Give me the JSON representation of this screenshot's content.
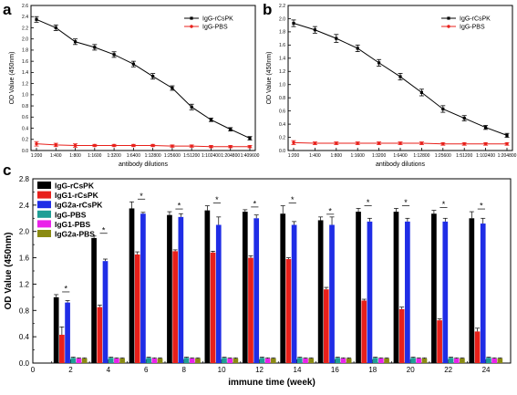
{
  "chart_data": [
    {
      "panel": "a",
      "type": "line",
      "categories": [
        "1:200",
        "1:400",
        "1:800",
        "1:1600",
        "1:3200",
        "1:6400",
        "1:12800",
        "1:25600",
        "1:51200",
        "1:102400",
        "1:204800",
        "1:409600"
      ],
      "series": [
        {
          "name": "IgG-rCsPK",
          "color": "#000000",
          "marker": "square",
          "values": [
            2.35,
            2.2,
            1.95,
            1.85,
            1.72,
            1.55,
            1.33,
            1.12,
            0.78,
            0.55,
            0.38,
            0.22
          ],
          "errors": [
            0.05,
            0.05,
            0.05,
            0.05,
            0.05,
            0.05,
            0.05,
            0.04,
            0.05,
            0.03,
            0.03,
            0.03
          ]
        },
        {
          "name": "IgG-PBS",
          "color": "#e8201b",
          "marker": "circle",
          "values": [
            0.12,
            0.1,
            0.09,
            0.09,
            0.09,
            0.09,
            0.09,
            0.08,
            0.08,
            0.07,
            0.07,
            0.07
          ],
          "errors": [
            0.04,
            0.03,
            0.03,
            0.02,
            0.02,
            0.02,
            0.02,
            0.02,
            0.02,
            0.02,
            0.02,
            0.02
          ]
        }
      ],
      "title": "",
      "xlabel": "antibody dilutions",
      "ylabel": "OD Value (450nm)",
      "ylim": [
        0,
        2.6
      ],
      "yticks": [
        "0.0",
        "0.2",
        "0.4",
        "0.6",
        "0.8",
        "1.0",
        "1.2",
        "1.4",
        "1.6",
        "1.8",
        "2.0",
        "2.2",
        "2.4",
        "2.6"
      ],
      "legend": "top-right"
    },
    {
      "panel": "b",
      "type": "line",
      "categories": [
        "1:200",
        "1:400",
        "1:800",
        "1:1600",
        "1:3200",
        "1:6400",
        "1:12800",
        "1:25600",
        "1:51200",
        "1:102400",
        "1:204800"
      ],
      "series": [
        {
          "name": "IgG-rCsPK",
          "color": "#000000",
          "marker": "square",
          "values": [
            1.93,
            1.83,
            1.7,
            1.55,
            1.33,
            1.12,
            0.88,
            0.63,
            0.49,
            0.35,
            0.23
          ],
          "errors": [
            0.05,
            0.05,
            0.06,
            0.05,
            0.05,
            0.05,
            0.05,
            0.05,
            0.04,
            0.03,
            0.03
          ]
        },
        {
          "name": "IgG-PBS",
          "color": "#e8201b",
          "marker": "circle",
          "values": [
            0.12,
            0.11,
            0.11,
            0.11,
            0.11,
            0.11,
            0.11,
            0.1,
            0.1,
            0.1,
            0.1
          ],
          "errors": [
            0.03,
            0.02,
            0.02,
            0.02,
            0.02,
            0.02,
            0.02,
            0.02,
            0.02,
            0.02,
            0.02
          ]
        }
      ],
      "title": "",
      "xlabel": "antibody dilutions",
      "ylabel": "OD Value (450nm)",
      "ylim": [
        0,
        2.2
      ],
      "yticks": [
        "0.0",
        "0.2",
        "0.4",
        "0.6",
        "0.8",
        "1.0",
        "1.2",
        "1.4",
        "1.6",
        "1.8",
        "2.0",
        "2.2"
      ],
      "legend": "top-right"
    },
    {
      "panel": "c",
      "type": "bar",
      "categories": [
        "2",
        "4",
        "6",
        "8",
        "10",
        "12",
        "14",
        "16",
        "18",
        "20",
        "22",
        "24"
      ],
      "series": [
        {
          "name": "IgG-rCsPK",
          "color": "#000000",
          "values": [
            1.0,
            1.9,
            2.35,
            2.25,
            2.32,
            2.3,
            2.27,
            2.17,
            2.3,
            2.3,
            2.27,
            2.2
          ],
          "errors": [
            0.04,
            0.03,
            0.1,
            0.05,
            0.07,
            0.03,
            0.12,
            0.05,
            0.05,
            0.05,
            0.05,
            0.1
          ]
        },
        {
          "name": "IgG1-rCsPK",
          "color": "#e8201b",
          "values": [
            0.43,
            0.85,
            1.65,
            1.7,
            1.68,
            1.6,
            1.58,
            1.12,
            0.95,
            0.82,
            0.65,
            0.48
          ],
          "errors": [
            0.12,
            0.03,
            0.04,
            0.02,
            0.02,
            0.03,
            0.02,
            0.03,
            0.02,
            0.03,
            0.02,
            0.05
          ]
        },
        {
          "name": "IgG2a-rCsPK",
          "color": "#1f2de6",
          "values": [
            0.92,
            1.55,
            2.27,
            2.22,
            2.1,
            2.2,
            2.1,
            2.1,
            2.15,
            2.15,
            2.15,
            2.12
          ],
          "errors": [
            0.03,
            0.03,
            0.02,
            0.05,
            0.12,
            0.05,
            0.05,
            0.12,
            0.05,
            0.05,
            0.05,
            0.08
          ]
        },
        {
          "name": "IgG-PBS",
          "color": "#1f9e95",
          "values": [
            0.08,
            0.08,
            0.08,
            0.08,
            0.08,
            0.08,
            0.08,
            0.08,
            0.08,
            0.08,
            0.08,
            0.08
          ],
          "errors": [
            0.01,
            0.01,
            0.01,
            0.01,
            0.01,
            0.01,
            0.01,
            0.01,
            0.01,
            0.01,
            0.01,
            0.01
          ]
        },
        {
          "name": "IgG1-PBS",
          "color": "#ea22ea",
          "values": [
            0.07,
            0.07,
            0.07,
            0.07,
            0.07,
            0.07,
            0.07,
            0.07,
            0.07,
            0.07,
            0.07,
            0.07
          ],
          "errors": [
            0.01,
            0.01,
            0.01,
            0.01,
            0.01,
            0.01,
            0.01,
            0.01,
            0.01,
            0.01,
            0.01,
            0.01
          ]
        },
        {
          "name": "IgG2a-PBS",
          "color": "#8a8a12",
          "values": [
            0.07,
            0.07,
            0.07,
            0.07,
            0.07,
            0.07,
            0.07,
            0.07,
            0.07,
            0.07,
            0.07,
            0.07
          ],
          "errors": [
            0.01,
            0.01,
            0.01,
            0.01,
            0.01,
            0.01,
            0.01,
            0.01,
            0.01,
            0.01,
            0.01,
            0.01
          ]
        }
      ],
      "annotations": [
        "*",
        "*",
        "*",
        "*",
        "*",
        "*",
        "*",
        "*",
        "*",
        "*",
        "*",
        "*"
      ],
      "title": "",
      "xlabel": "immune time (week)",
      "ylabel": "OD Value (450nm)",
      "xticks": [
        "0",
        "2",
        "4",
        "6",
        "8",
        "10",
        "12",
        "14",
        "16",
        "18",
        "20",
        "22",
        "24"
      ],
      "xlim": [
        0,
        25.3
      ],
      "ylim": [
        0,
        2.8
      ],
      "yticks": [
        "0.0",
        "0.4",
        "0.8",
        "1.2",
        "1.6",
        "2.0",
        "2.4",
        "2.8"
      ],
      "legend": "top-left"
    }
  ]
}
